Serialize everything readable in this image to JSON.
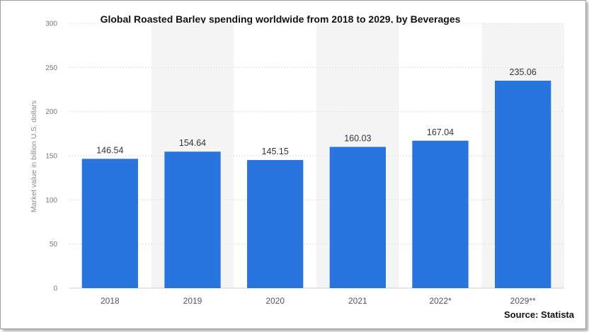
{
  "chart_data": {
    "type": "bar",
    "title": "Global Roasted Barley spending worldwide from 2018 to 2029, by Beverages",
    "ylabel": "Market value in billion U.S. dollars",
    "xlabel": "",
    "categories": [
      "2018",
      "2019",
      "2020",
      "2021",
      "2022*",
      "2029**"
    ],
    "values": [
      146.54,
      154.64,
      145.15,
      160.03,
      167.04,
      235.06
    ],
    "value_labels": [
      "146.54",
      "154.64",
      "145.15",
      "160.03",
      "167.04",
      "235.06"
    ],
    "ylim": [
      0,
      300
    ],
    "yticks": [
      0,
      50,
      100,
      150,
      200,
      250,
      300
    ],
    "grid": true,
    "bar_color": "#2a75dd"
  },
  "source": "Source: Statista"
}
